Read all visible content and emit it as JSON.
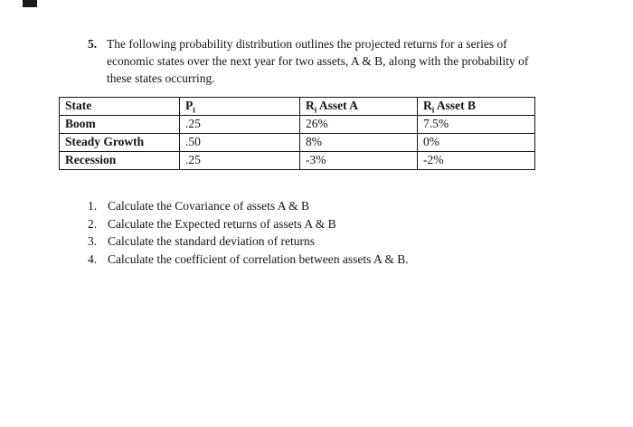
{
  "question": {
    "number": "5.",
    "text": "The following probability distribution outlines the projected returns for a series of economic states over the next year for two assets, A & B, along with the probability of these states occurring."
  },
  "table": {
    "headers": [
      {
        "pre": "State",
        "sub": "",
        "post": ""
      },
      {
        "pre": "P",
        "sub": "i",
        "post": ""
      },
      {
        "pre": "R",
        "sub": "i",
        "post": " Asset A"
      },
      {
        "pre": "R",
        "sub": "i",
        "post": " Asset B"
      }
    ],
    "rows": [
      {
        "state": "Boom",
        "pi": ".25",
        "ra": "26%",
        "rb": "7.5%"
      },
      {
        "state": "Steady Growth",
        "pi": ".50",
        "ra": "8%",
        "rb": "0%"
      },
      {
        "state": "Recession",
        "pi": ".25",
        "ra": "-3%",
        "rb": "-2%"
      }
    ]
  },
  "tasks": [
    {
      "num": "1.",
      "text": "Calculate the Covariance of assets A & B"
    },
    {
      "num": "2.",
      "text": "Calculate the Expected returns of assets A & B"
    },
    {
      "num": "3.",
      "text": "Calculate the standard deviation of returns"
    },
    {
      "num": "4.",
      "text": "Calculate the coefficient of correlation between assets A & B."
    }
  ]
}
